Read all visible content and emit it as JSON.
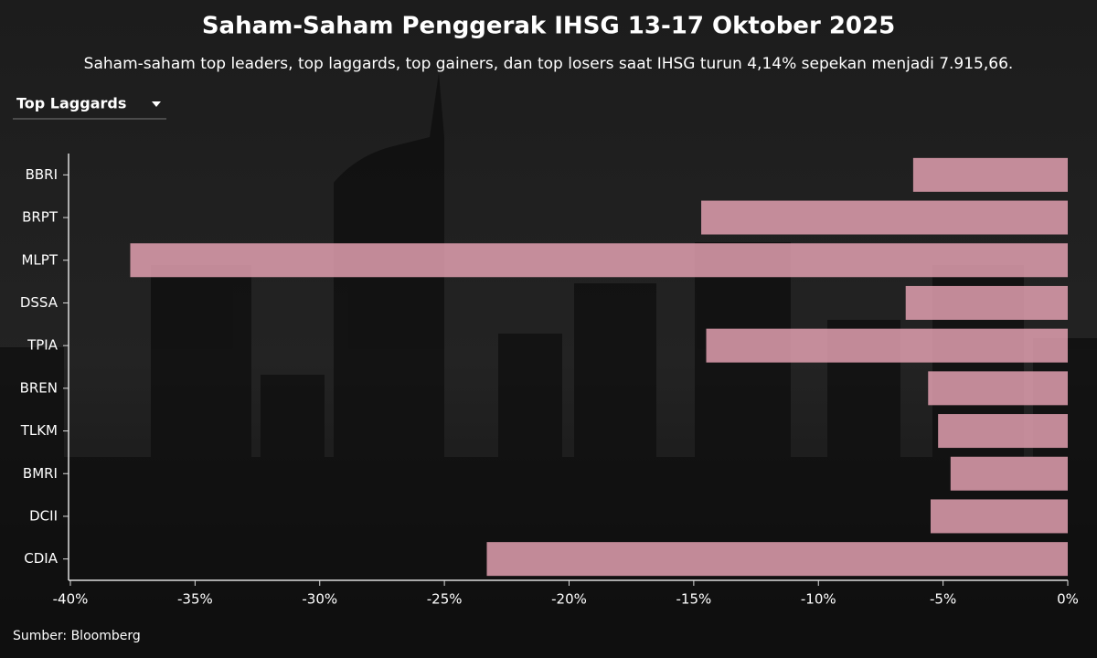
{
  "controls": {
    "dropdown": "Top Laggards"
  },
  "chart_data": {
    "type": "bar",
    "orientation": "horizontal",
    "title": "Saham-Saham Penggerak IHSG 13-17 Oktober 2025",
    "subtitle": "Saham-saham top leaders, top laggards, top gainers, dan top losers saat IHSG turun 4,14% sepekan menjadi 7.915,66.",
    "source": "Sumber: Bloomberg",
    "categories": [
      "BBRI",
      "BRPT",
      "MLPT",
      "DSSA",
      "TPIA",
      "BREN",
      "TLKM",
      "BMRI",
      "DCII",
      "CDIA"
    ],
    "values": [
      -6.2,
      -14.7,
      -37.6,
      -6.5,
      -14.5,
      -5.6,
      -5.2,
      -4.7,
      -5.5,
      -23.3
    ],
    "color": "#e2a0b0",
    "xlim": [
      -40,
      0
    ],
    "xticks": [
      {
        "value": -40,
        "label": "-40%"
      },
      {
        "value": -35,
        "label": "-35%"
      },
      {
        "value": -30,
        "label": "-30%"
      },
      {
        "value": -25,
        "label": "-25%"
      },
      {
        "value": -20,
        "label": "-20%"
      },
      {
        "value": -15,
        "label": "-15%"
      },
      {
        "value": -10,
        "label": "-10%"
      },
      {
        "value": -5,
        "label": "-5%"
      },
      {
        "value": 0,
        "label": "0%"
      }
    ],
    "grid": false
  }
}
